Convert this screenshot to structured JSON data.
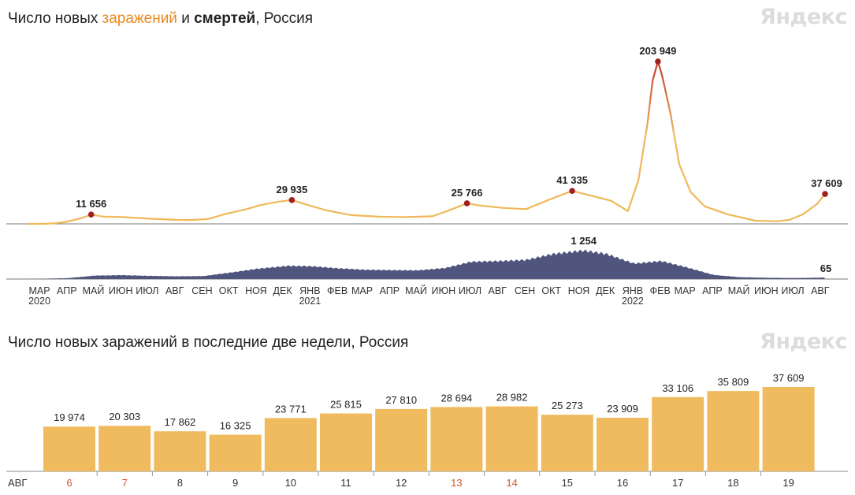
{
  "chart1": {
    "title_prefix": "Число новых ",
    "title_infections": "заражений",
    "title_mid": " и ",
    "title_deaths": "смертей",
    "title_suffix": ", Россия",
    "logo": "Яндекс"
  },
  "chart2": {
    "title": "Число новых заражений в последние две недели, Россия",
    "logo": "Яндекс"
  },
  "colors": {
    "infections_line": "#f0b85a",
    "infections_peak": "#c0392b",
    "deaths_area": "#50557e",
    "bars": "#f0bb5e",
    "marker": "#a01f1f",
    "weekend_label": "#d9532c"
  },
  "chart_data": [
    {
      "type": "line",
      "series": [
        {
          "points": [
            [
              "2020-03-01",
              0
            ],
            [
              "2020-03-20",
              50
            ],
            [
              "2020-04-01",
              800
            ],
            [
              "2020-04-15",
              3000
            ],
            [
              "2020-05-01",
              7500
            ],
            [
              "2020-05-11",
              11656
            ],
            [
              "2020-05-25",
              9000
            ],
            [
              "2020-06-15",
              8500
            ],
            [
              "2020-07-15",
              6500
            ],
            [
              "2020-08-15",
              5000
            ],
            [
              "2020-09-01",
              4900
            ],
            [
              "2020-09-20",
              6000
            ],
            [
              "2020-10-10",
              12500
            ],
            [
              "2020-11-01",
              18000
            ],
            [
              "2020-11-20",
              24000
            ],
            [
              "2020-12-10",
              28000
            ],
            [
              "2020-12-24",
              29935
            ],
            [
              "2021-01-10",
              24000
            ],
            [
              "2021-02-01",
              17000
            ],
            [
              "2021-03-01",
              11000
            ],
            [
              "2021-04-01",
              9000
            ],
            [
              "2021-05-01",
              8500
            ],
            [
              "2021-06-01",
              9500
            ],
            [
              "2021-06-20",
              17000
            ],
            [
              "2021-07-10",
              25766
            ],
            [
              "2021-07-25",
              23000
            ],
            [
              "2021-08-20",
              20000
            ],
            [
              "2021-09-15",
              18500
            ],
            [
              "2021-10-10",
              30000
            ],
            [
              "2021-11-06",
              41335
            ],
            [
              "2021-11-25",
              36000
            ],
            [
              "2021-12-20",
              29000
            ],
            [
              "2022-01-08",
              16000
            ],
            [
              "2022-01-20",
              55000
            ],
            [
              "2022-01-30",
              125000
            ],
            [
              "2022-02-05",
              180000
            ],
            [
              "2022-02-11",
              203949
            ],
            [
              "2022-02-16",
              185000
            ],
            [
              "2022-02-25",
              140000
            ],
            [
              "2022-03-07",
              75000
            ],
            [
              "2022-03-20",
              40000
            ],
            [
              "2022-04-05",
              22000
            ],
            [
              "2022-05-01",
              12000
            ],
            [
              "2022-06-01",
              4000
            ],
            [
              "2022-06-25",
              3200
            ],
            [
              "2022-07-10",
              5000
            ],
            [
              "2022-07-25",
              12000
            ],
            [
              "2022-08-10",
              25000
            ],
            [
              "2022-08-19",
              37609
            ]
          ]
        },
        {
          "points": [
            [
              "2020-03-01",
              0
            ],
            [
              "2020-04-15",
              40
            ],
            [
              "2020-05-15",
              150
            ],
            [
              "2020-06-15",
              170
            ],
            [
              "2020-07-15",
              140
            ],
            [
              "2020-08-15",
              120
            ],
            [
              "2020-09-15",
              130
            ],
            [
              "2020-10-15",
              280
            ],
            [
              "2020-11-15",
              450
            ],
            [
              "2020-12-20",
              580
            ],
            [
              "2021-01-15",
              560
            ],
            [
              "2021-02-15",
              470
            ],
            [
              "2021-03-15",
              410
            ],
            [
              "2021-04-15",
              390
            ],
            [
              "2021-05-15",
              380
            ],
            [
              "2021-06-15",
              480
            ],
            [
              "2021-07-15",
              760
            ],
            [
              "2021-08-15",
              790
            ],
            [
              "2021-09-15",
              840
            ],
            [
              "2021-10-15",
              1100
            ],
            [
              "2021-11-19",
              1254
            ],
            [
              "2021-12-15",
              1100
            ],
            [
              "2022-01-15",
              680
            ],
            [
              "2022-02-15",
              790
            ],
            [
              "2022-03-15",
              520
            ],
            [
              "2022-04-15",
              180
            ],
            [
              "2022-05-15",
              80
            ],
            [
              "2022-06-15",
              55
            ],
            [
              "2022-07-15",
              45
            ],
            [
              "2022-08-19",
              65
            ]
          ]
        }
      ],
      "annotations": [
        {
          "date": "2020-05-11",
          "series": 0,
          "label": "11 656"
        },
        {
          "date": "2020-12-24",
          "series": 0,
          "label": "29 935"
        },
        {
          "date": "2021-07-10",
          "series": 0,
          "label": "25 766"
        },
        {
          "date": "2021-11-06",
          "series": 0,
          "label": "41 335"
        },
        {
          "date": "2022-02-11",
          "series": 0,
          "label": "203 949"
        },
        {
          "date": "2022-08-19",
          "series": 0,
          "label": "37 609"
        },
        {
          "date": "2021-11-19",
          "series": 1,
          "label": "1 254"
        },
        {
          "date": "2022-08-19",
          "series": 1,
          "label": "65"
        }
      ],
      "x_ticks": [
        {
          "date": "2020-03-01",
          "label": "МАР",
          "year": "2020"
        },
        {
          "date": "2020-04-01",
          "label": "АПР"
        },
        {
          "date": "2020-05-01",
          "label": "МАЙ"
        },
        {
          "date": "2020-06-01",
          "label": "ИЮН"
        },
        {
          "date": "2020-07-01",
          "label": "ИЮЛ"
        },
        {
          "date": "2020-08-01",
          "label": "АВГ"
        },
        {
          "date": "2020-09-01",
          "label": "СЕН"
        },
        {
          "date": "2020-10-01",
          "label": "ОКТ"
        },
        {
          "date": "2020-11-01",
          "label": "НОЯ"
        },
        {
          "date": "2020-12-01",
          "label": "ДЕК"
        },
        {
          "date": "2021-01-01",
          "label": "ЯНВ",
          "year": "2021"
        },
        {
          "date": "2021-02-01",
          "label": "ФЕВ"
        },
        {
          "date": "2021-03-01",
          "label": "МАР"
        },
        {
          "date": "2021-04-01",
          "label": "АПР"
        },
        {
          "date": "2021-05-01",
          "label": "МАЙ"
        },
        {
          "date": "2021-06-01",
          "label": "ИЮН"
        },
        {
          "date": "2021-07-01",
          "label": "ИЮЛ"
        },
        {
          "date": "2021-08-01",
          "label": "АВГ"
        },
        {
          "date": "2021-09-01",
          "label": "СЕН"
        },
        {
          "date": "2021-10-01",
          "label": "ОКТ"
        },
        {
          "date": "2021-11-01",
          "label": "НОЯ"
        },
        {
          "date": "2021-12-01",
          "label": "ДЕК"
        },
        {
          "date": "2022-01-01",
          "label": "ЯНВ",
          "year": "2022"
        },
        {
          "date": "2022-02-01",
          "label": "ФЕВ"
        },
        {
          "date": "2022-03-01",
          "label": "МАР"
        },
        {
          "date": "2022-04-01",
          "label": "АПР"
        },
        {
          "date": "2022-05-01",
          "label": "МАЙ"
        },
        {
          "date": "2022-06-01",
          "label": "ИЮН"
        },
        {
          "date": "2022-07-01",
          "label": "ИЮЛ"
        },
        {
          "date": "2022-08-01",
          "label": "АВГ"
        }
      ]
    },
    {
      "type": "bar",
      "month_label": "АВГ",
      "categories": [
        "6",
        "7",
        "8",
        "9",
        "10",
        "11",
        "12",
        "13",
        "14",
        "15",
        "16",
        "17",
        "18",
        "19"
      ],
      "values": [
        19974,
        20303,
        17862,
        16325,
        23771,
        25815,
        27810,
        28694,
        28982,
        25273,
        23909,
        33106,
        35809,
        37609
      ],
      "value_labels": [
        "19 974",
        "20 303",
        "17 862",
        "16 325",
        "23 771",
        "25 815",
        "27 810",
        "28 694",
        "28 982",
        "25 273",
        "23 909",
        "33 106",
        "35 809",
        "37 609"
      ],
      "weekend": [
        "6",
        "7",
        "13",
        "14"
      ]
    }
  ]
}
